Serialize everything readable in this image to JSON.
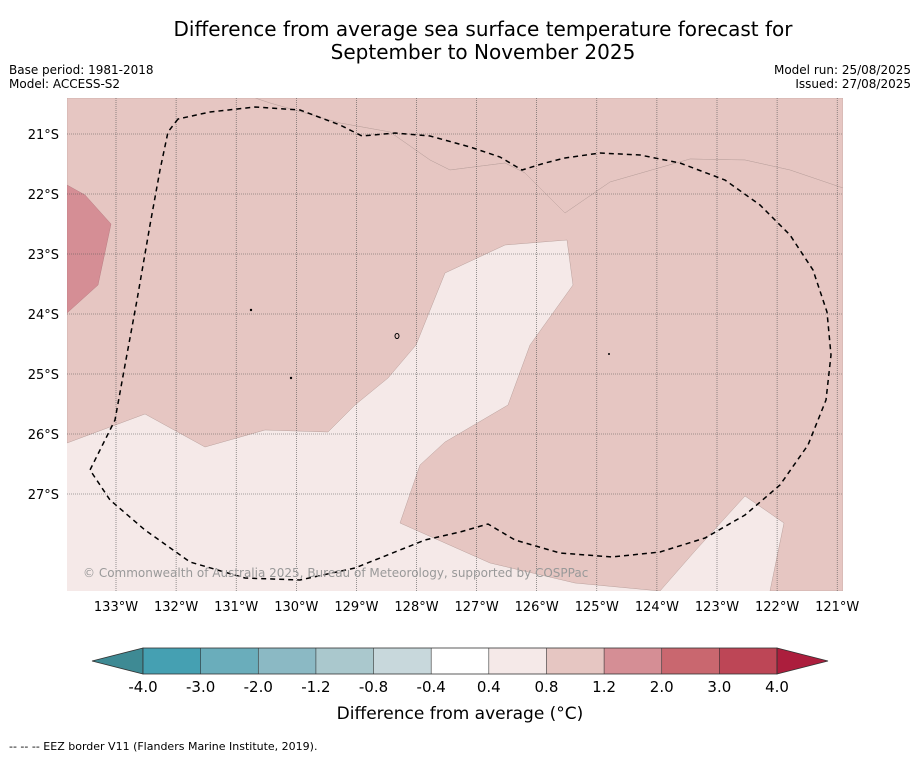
{
  "header": {
    "title_line1": "Difference from average sea surface temperature forecast for",
    "title_line2": "September to November 2025",
    "base_period": "Base period: 1981-2018",
    "model": "Model: ACCESS-S2",
    "model_run": "Model run: 25/08/2025",
    "issued": "Issued: 27/08/2025"
  },
  "map": {
    "lat_ticks": [
      "21°S",
      "22°S",
      "23°S",
      "24°S",
      "25°S",
      "26°S",
      "27°S"
    ],
    "lon_ticks": [
      "133°W",
      "132°W",
      "131°W",
      "130°W",
      "129°W",
      "128°W",
      "127°W",
      "126°W",
      "125°W",
      "124°W",
      "123°W",
      "122°W",
      "121°W"
    ],
    "copyright": "© Commonwealth of Australia 2025, Bureau of Meteorology, supported by COSPPac",
    "colors": {
      "band_0_4_0_8": "#f5e9e8",
      "band_0_8_1_2": "#e6c6c2",
      "band_1_2_2_0": "#d58e95"
    }
  },
  "colorbar": {
    "tick_labels": [
      "-4.0",
      "-3.0",
      "-2.0",
      "-1.2",
      "-0.8",
      "-0.4",
      "0.4",
      "0.8",
      "1.2",
      "2.0",
      "3.0",
      "4.0"
    ],
    "colors": [
      "#45a0b2",
      "#6aadbb",
      "#8bb9c4",
      "#aac8cd",
      "#c8d8dc",
      "#ffffff",
      "#f5e9e8",
      "#e6c6c2",
      "#d58e95",
      "#c9676f",
      "#bd4656"
    ],
    "low_extend_color": "#3e8a94",
    "high_extend_color": "#ac1e3d",
    "label": "Difference from average (°C)"
  },
  "footnote": "--  --  -- EEZ border V11 (Flanders Marine Institute, 2019)."
}
